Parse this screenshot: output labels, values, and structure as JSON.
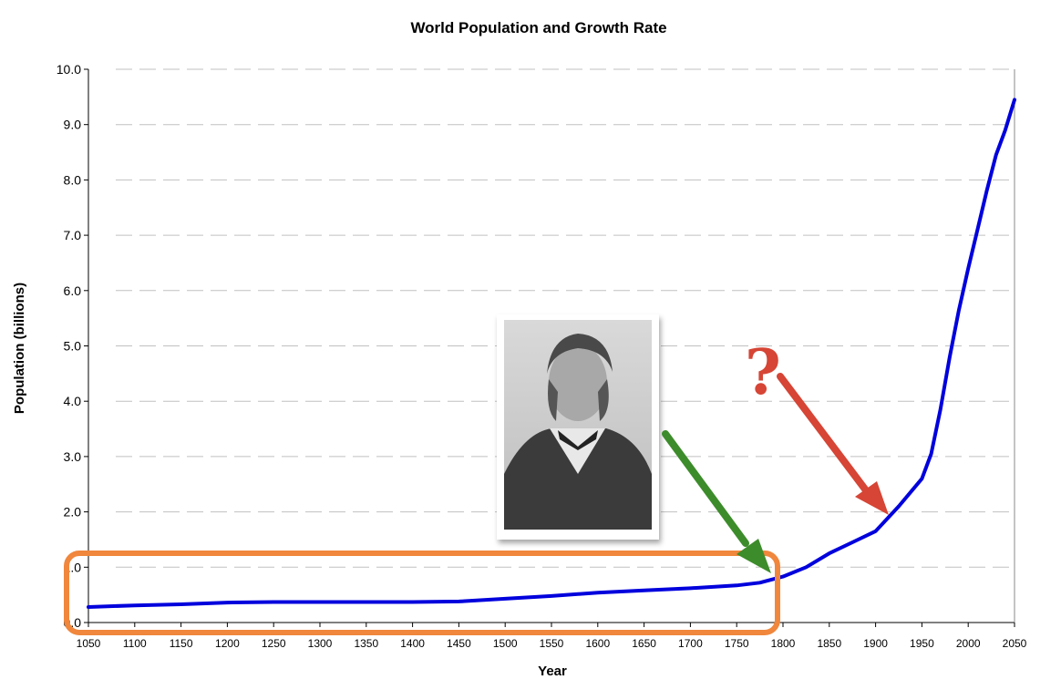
{
  "chart_data": {
    "type": "line",
    "title": "World Population and Growth Rate",
    "xlabel": "Year",
    "ylabel": "Population (billions)",
    "xlim": [
      1050,
      2050
    ],
    "ylim": [
      0,
      10
    ],
    "grid": true,
    "y_ticks": [
      "0.0",
      "1.0",
      "2.0",
      "3.0",
      "4.0",
      "5.0",
      "6.0",
      "7.0",
      "8.0",
      "9.0",
      "10.0"
    ],
    "x_ticks": [
      "1050",
      "1100",
      "1150",
      "1200",
      "1250",
      "1300",
      "1350",
      "1400",
      "1450",
      "1500",
      "1550",
      "1600",
      "1650",
      "1700",
      "1750",
      "1800",
      "1850",
      "1900",
      "1950",
      "2000",
      "2050"
    ],
    "series": [
      {
        "color": "#0000dd",
        "x": [
          1050,
          1100,
          1150,
          1200,
          1250,
          1300,
          1350,
          1400,
          1450,
          1500,
          1550,
          1600,
          1650,
          1700,
          1750,
          1775,
          1800,
          1825,
          1850,
          1875,
          1900,
          1925,
          1950,
          1960,
          1970,
          1980,
          1990,
          2000,
          2010,
          2020,
          2030,
          2040,
          2050
        ],
        "y": [
          0.28,
          0.31,
          0.33,
          0.36,
          0.37,
          0.37,
          0.37,
          0.37,
          0.38,
          0.43,
          0.48,
          0.54,
          0.58,
          0.62,
          0.67,
          0.72,
          0.83,
          1.0,
          1.25,
          1.45,
          1.65,
          2.1,
          2.6,
          3.05,
          3.85,
          4.8,
          5.65,
          6.4,
          7.1,
          7.8,
          8.45,
          8.9,
          9.45
        ]
      }
    ],
    "annotations": {
      "highlight_range": [
        1050,
        1790
      ],
      "question_mark": "?",
      "question_color": "#d64535",
      "question_arrow_color": "#d64535",
      "green_arrow_color": "#3d8c2b",
      "highlight_color": "#f0873c"
    }
  }
}
